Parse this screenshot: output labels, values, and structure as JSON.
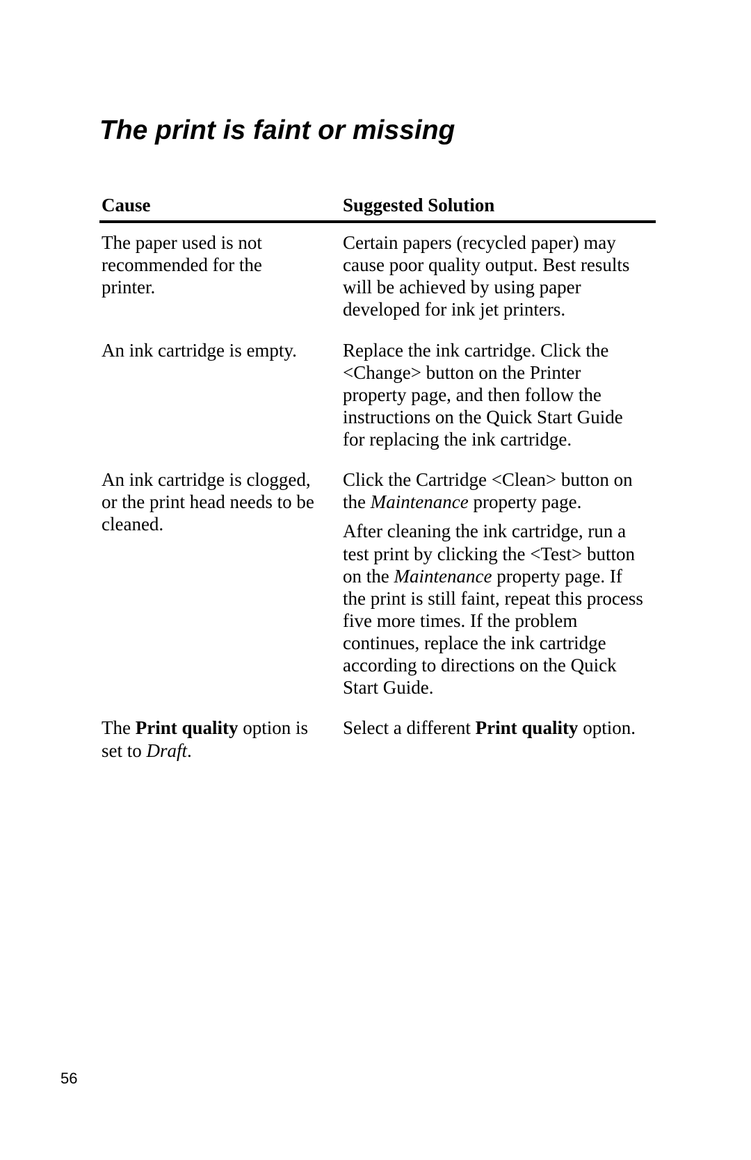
{
  "page": {
    "title": "The print is faint or missing",
    "page_number": "56"
  },
  "table": {
    "headers": {
      "cause": "Cause",
      "solution": "Suggested Solution"
    },
    "rows": [
      {
        "cause": "The paper used is not recommended for the printer.",
        "solution": "Certain papers (recycled paper) may cause poor quality output. Best results will be achieved by using paper developed for ink jet printers."
      },
      {
        "cause": "An ink cartridge is empty.",
        "solution": "Replace the ink cartridge. Click the <Change> button on the Printer property page, and then follow the instructions on the Quick Start Guide for replacing the ink cartridge."
      },
      {
        "cause": "An ink cartridge is clogged, or the print head needs to be cleaned.",
        "solution_p1_pre": "Click the Cartridge <Clean> button on the ",
        "solution_p1_italic": "Maintenance",
        "solution_p1_post": " property page.",
        "solution_p2_pre": "After cleaning the ink cartridge, run a test print by clicking the <Test> button on the ",
        "solution_p2_italic": "Maintenance",
        "solution_p2_post": " property page. If the print is still faint, repeat this process five more times. If the problem continues, replace the ink cartridge according to directions on the Quick Start Guide."
      },
      {
        "cause_pre": "The ",
        "cause_bold": "Print quality",
        "cause_mid": " option is set to ",
        "cause_italic": "Draft",
        "cause_post": ".",
        "solution_pre": "Select a different ",
        "solution_bold": "Print quality",
        "solution_post": " option."
      }
    ]
  }
}
